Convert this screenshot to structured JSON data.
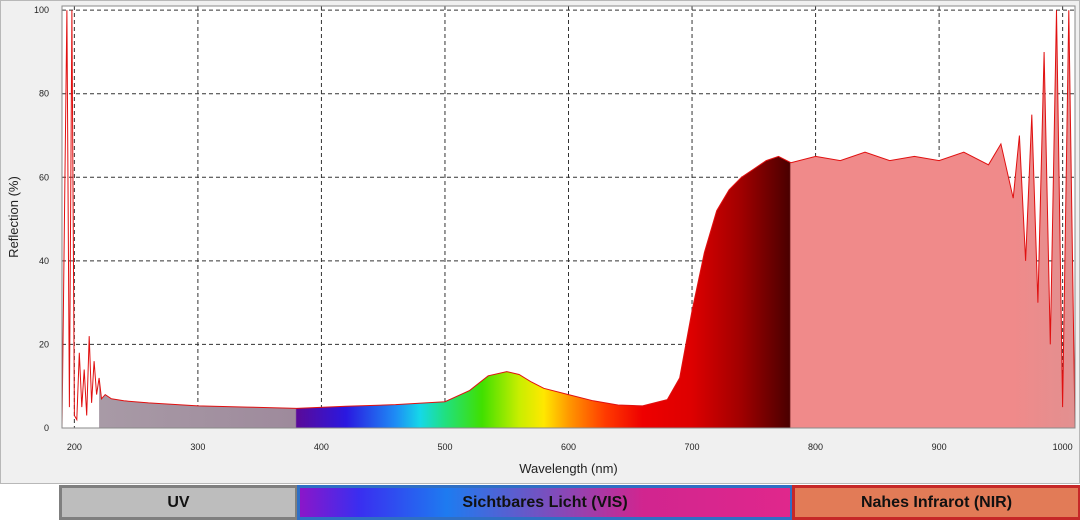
{
  "chart_data": {
    "type": "area",
    "xlabel": "Wavelength (nm)",
    "ylabel": "Reflection (%)",
    "xlim": [
      190,
      1010
    ],
    "ylim": [
      0,
      101
    ],
    "xticks": [
      200,
      300,
      400,
      500,
      600,
      700,
      800,
      900,
      1000
    ],
    "yticks": [
      0,
      20,
      40,
      60,
      80,
      100
    ],
    "grid": true,
    "series": [
      {
        "x": [
          190,
          194,
          196,
          198,
          200,
          202,
          204,
          206,
          208,
          210,
          212,
          214,
          216,
          218,
          220,
          222,
          225,
          230,
          240,
          260,
          300,
          340,
          380,
          420,
          460,
          500,
          520,
          535,
          550,
          560,
          570,
          580,
          600,
          620,
          640,
          660,
          680,
          690,
          700,
          710,
          720,
          730,
          740,
          750,
          760,
          770,
          780,
          800,
          820,
          840,
          860,
          880,
          900,
          920,
          940,
          950,
          960,
          965,
          970,
          975,
          980,
          985,
          990,
          995,
          1000,
          1005,
          1010
        ],
        "y": [
          0,
          100,
          5,
          100,
          3,
          2,
          18,
          5,
          14,
          3,
          22,
          6,
          16,
          8,
          12,
          7,
          8,
          7,
          6.5,
          6,
          5.3,
          5,
          4.7,
          5.2,
          5.6,
          6.3,
          9,
          12.5,
          13.5,
          12.8,
          11,
          9.5,
          8,
          6.5,
          5.5,
          5.3,
          6.8,
          12,
          28,
          42,
          52,
          57,
          60,
          62,
          64,
          65,
          63.5,
          65,
          64,
          66,
          64,
          65,
          64,
          66,
          63,
          68,
          55,
          70,
          40,
          75,
          30,
          90,
          20,
          100,
          5,
          100,
          0
        ]
      }
    ],
    "spectral_regions": [
      {
        "label": "UV",
        "from": 190,
        "to": 380,
        "color": "#bdbdbd"
      },
      {
        "label": "Sichtbares Licht (VIS)",
        "from": 380,
        "to": 780,
        "color": "#3a2ef0"
      },
      {
        "label": "Nahes Infrarot (NIR)",
        "from": 780,
        "to": 1010,
        "color": "#e27b57"
      }
    ]
  }
}
